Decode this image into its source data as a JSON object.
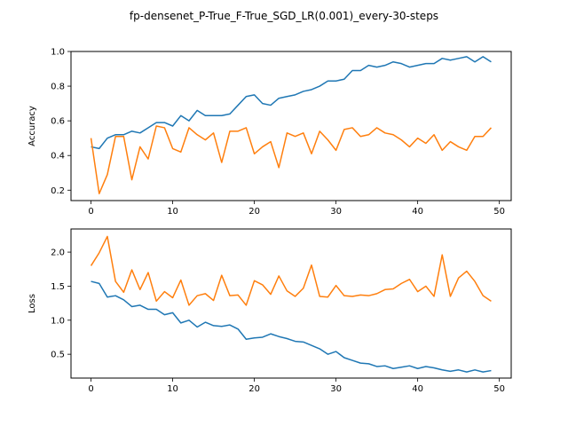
{
  "suptitle": "fp-densenet_P-True_F-True_SGD_LR(0.001)_every-30-steps",
  "colors": {
    "series1": "#1f77b4",
    "series2": "#ff7f0e",
    "axis": "#000000",
    "background": "#ffffff"
  },
  "chart_data": [
    {
      "type": "line",
      "title": "",
      "xlabel": "",
      "ylabel": "Accuracy",
      "xlim": [
        -2.45,
        51.45
      ],
      "ylim": [
        0.14,
        1.0
      ],
      "xticks": [
        0,
        10,
        20,
        30,
        40,
        50
      ],
      "yticks": [
        0.2,
        0.4,
        0.6,
        0.8,
        1.0
      ],
      "ytick_labels": [
        "0.2",
        "0.4",
        "0.6",
        "0.8",
        "1.0"
      ],
      "grid": false,
      "legend": "none",
      "x": [
        0,
        1,
        2,
        3,
        4,
        5,
        6,
        7,
        8,
        9,
        10,
        11,
        12,
        13,
        14,
        15,
        16,
        17,
        18,
        19,
        20,
        21,
        22,
        23,
        24,
        25,
        26,
        27,
        28,
        29,
        30,
        31,
        32,
        33,
        34,
        35,
        36,
        37,
        38,
        39,
        40,
        41,
        42,
        43,
        44,
        45,
        46,
        47,
        48,
        49
      ],
      "series": [
        {
          "color": "#1f77b4",
          "values": [
            0.45,
            0.44,
            0.5,
            0.52,
            0.52,
            0.54,
            0.53,
            0.56,
            0.59,
            0.59,
            0.57,
            0.63,
            0.6,
            0.66,
            0.63,
            0.63,
            0.63,
            0.64,
            0.69,
            0.74,
            0.75,
            0.7,
            0.69,
            0.73,
            0.74,
            0.75,
            0.77,
            0.78,
            0.8,
            0.83,
            0.83,
            0.84,
            0.89,
            0.89,
            0.92,
            0.91,
            0.92,
            0.94,
            0.93,
            0.91,
            0.92,
            0.93,
            0.93,
            0.96,
            0.95,
            0.96,
            0.97,
            0.94,
            0.97,
            0.94
          ]
        },
        {
          "color": "#ff7f0e",
          "values": [
            0.5,
            0.18,
            0.29,
            0.51,
            0.51,
            0.26,
            0.45,
            0.38,
            0.57,
            0.56,
            0.44,
            0.42,
            0.56,
            0.52,
            0.49,
            0.53,
            0.36,
            0.54,
            0.54,
            0.56,
            0.41,
            0.45,
            0.48,
            0.33,
            0.53,
            0.51,
            0.53,
            0.41,
            0.54,
            0.49,
            0.43,
            0.55,
            0.56,
            0.51,
            0.52,
            0.56,
            0.53,
            0.52,
            0.49,
            0.45,
            0.5,
            0.47,
            0.52,
            0.43,
            0.48,
            0.45,
            0.43,
            0.51,
            0.51,
            0.56
          ]
        }
      ]
    },
    {
      "type": "line",
      "title": "",
      "xlabel": "",
      "ylabel": "Loss",
      "xlim": [
        -2.45,
        51.45
      ],
      "ylim": [
        0.15,
        2.34
      ],
      "xticks": [
        0,
        10,
        20,
        30,
        40,
        50
      ],
      "yticks": [
        0.5,
        1.0,
        1.5,
        2.0
      ],
      "ytick_labels": [
        "0.5",
        "1.0",
        "1.5",
        "2.0"
      ],
      "grid": false,
      "legend": "none",
      "x": [
        0,
        1,
        2,
        3,
        4,
        5,
        6,
        7,
        8,
        9,
        10,
        11,
        12,
        13,
        14,
        15,
        16,
        17,
        18,
        19,
        20,
        21,
        22,
        23,
        24,
        25,
        26,
        27,
        28,
        29,
        30,
        31,
        32,
        33,
        34,
        35,
        36,
        37,
        38,
        39,
        40,
        41,
        42,
        43,
        44,
        45,
        46,
        47,
        48,
        49
      ],
      "series": [
        {
          "color": "#1f77b4",
          "values": [
            1.57,
            1.54,
            1.34,
            1.36,
            1.3,
            1.2,
            1.22,
            1.16,
            1.16,
            1.08,
            1.11,
            0.96,
            1.0,
            0.9,
            0.97,
            0.92,
            0.91,
            0.93,
            0.87,
            0.72,
            0.74,
            0.75,
            0.8,
            0.76,
            0.73,
            0.69,
            0.68,
            0.63,
            0.58,
            0.5,
            0.54,
            0.45,
            0.41,
            0.37,
            0.36,
            0.32,
            0.33,
            0.29,
            0.31,
            0.33,
            0.29,
            0.32,
            0.3,
            0.27,
            0.25,
            0.27,
            0.24,
            0.27,
            0.24,
            0.26
          ]
        },
        {
          "color": "#ff7f0e",
          "values": [
            1.8,
            1.99,
            2.23,
            1.57,
            1.41,
            1.74,
            1.45,
            1.7,
            1.28,
            1.42,
            1.33,
            1.59,
            1.22,
            1.36,
            1.39,
            1.29,
            1.66,
            1.36,
            1.37,
            1.22,
            1.58,
            1.52,
            1.38,
            1.65,
            1.43,
            1.35,
            1.47,
            1.81,
            1.35,
            1.34,
            1.51,
            1.36,
            1.35,
            1.37,
            1.36,
            1.39,
            1.45,
            1.46,
            1.54,
            1.6,
            1.42,
            1.5,
            1.35,
            1.96,
            1.35,
            1.62,
            1.72,
            1.57,
            1.36,
            1.28
          ]
        }
      ]
    }
  ]
}
